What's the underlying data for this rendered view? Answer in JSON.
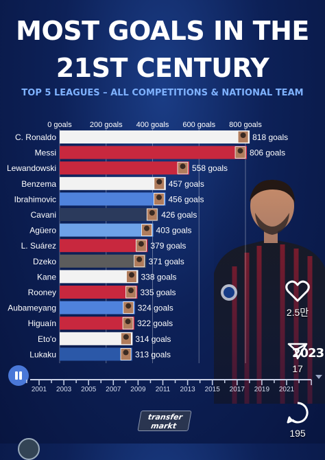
{
  "header": {
    "title_line1": "MOST GOALS IN THE",
    "title_line2": "21ST CENTURY",
    "subtitle": "TOP 5 LEAGUES – ALL COMPETITIONS & NATIONAL TEAM"
  },
  "chart_data": {
    "type": "bar",
    "orientation": "horizontal",
    "x_ticks": [
      "0 goals",
      "200 goals",
      "400 goals",
      "600 goals",
      "800 goals"
    ],
    "xlim": [
      0,
      800
    ],
    "value_suffix": " goals",
    "categories": [
      "C. Ronaldo",
      "Messi",
      "Lewandowski",
      "Benzema",
      "Ibrahimovic",
      "Cavani",
      "Agüero",
      "L. Suárez",
      "Dzeko",
      "Kane",
      "Rooney",
      "Aubameyang",
      "Higuaín",
      "Eto'o",
      "Lukaku"
    ],
    "values": [
      818,
      806,
      558,
      457,
      456,
      426,
      403,
      379,
      371,
      338,
      335,
      324,
      322,
      314,
      313
    ],
    "bar_colors": [
      "#f2f2f2",
      "#c8283e",
      "#c8283e",
      "#f2f2f2",
      "#4f82dc",
      "#2b3a5c",
      "#6ea2e8",
      "#c8283e",
      "#5c5c5c",
      "#f2f2f2",
      "#c8283e",
      "#4f82dc",
      "#c8283e",
      "#f2f2f2",
      "#2b58a8"
    ],
    "grid": true,
    "legend": "none"
  },
  "timeline": {
    "years": [
      "2001",
      "2003",
      "2005",
      "2007",
      "2009",
      "2011",
      "2013",
      "2015",
      "2017",
      "2019",
      "2021"
    ],
    "current_label": "2023",
    "domain": [
      2000,
      2023
    ],
    "progress": 1.0
  },
  "sidebar": {
    "likes": "2.5만",
    "shares": "17",
    "comments": "195"
  },
  "logo": {
    "line1": "transfer",
    "line2": "markt"
  },
  "colors": {
    "background": "#0d2158",
    "accent": "#7fb2ff",
    "pause_button": "#4a78d8"
  },
  "icons": [
    "pause-icon",
    "heart-icon",
    "share-icon",
    "comment-icon"
  ]
}
